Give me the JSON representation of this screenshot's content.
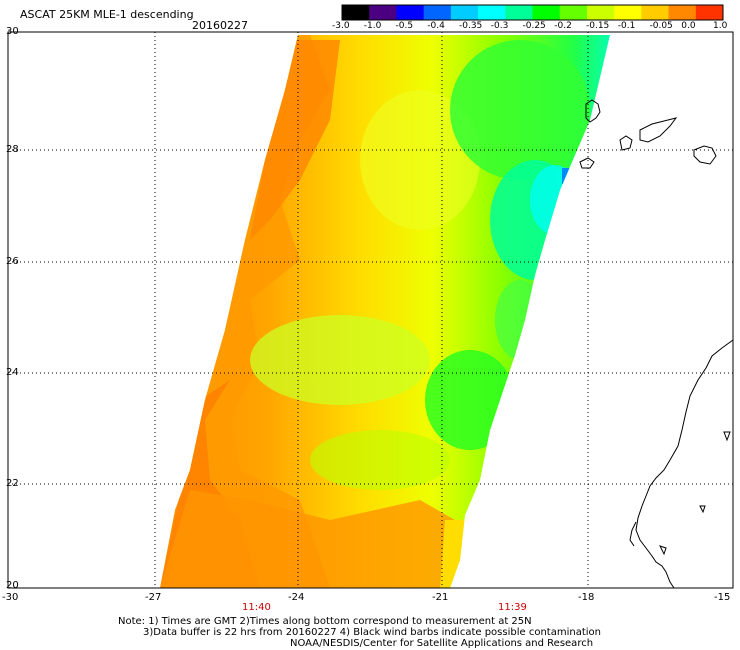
{
  "header": {
    "title": "ASCAT 25KM MLE-1 descending",
    "date": "20160227"
  },
  "colorbar": {
    "labels": [
      "-3.0",
      "-1.0",
      "-0.5",
      "-0.4",
      "-0.35",
      "-0.3",
      "-0.25",
      "-0.2",
      "-0.15",
      "-0.1",
      "-0.05",
      "0.0",
      "1.0"
    ],
    "colors": [
      "#000000",
      "#4b0082",
      "#0000ff",
      "#0066ff",
      "#00ccff",
      "#00ffff",
      "#00ff99",
      "#00ff00",
      "#66ff00",
      "#ccff00",
      "#ffff00",
      "#ffcc00",
      "#ff8800",
      "#ff3300"
    ]
  },
  "map": {
    "lat_labels": [
      "30",
      "28",
      "26",
      "24",
      "22",
      "20"
    ],
    "lon_labels": [
      "-30",
      "-27",
      "-24",
      "-21",
      "-18",
      "-15"
    ],
    "times": [
      "11:40",
      "11:39"
    ],
    "swath_colors": {
      "orange": "#ff8c00",
      "light_orange": "#ffb000",
      "yellow": "#ffee00",
      "yellow_green": "#ccff00",
      "green": "#33ff00",
      "cyan_green": "#00ff99",
      "cyan": "#00ffff",
      "blue": "#0088ff"
    }
  },
  "notes": [
    "Note: 1) Times are GMT 2)Times along bottom correspond to measurement at 25N",
    "3)Data buffer is 22 hrs from 20160227 4) Black wind barbs indicate possible contamination",
    "NOAA/NESDIS/Center for Satellite Applications and Research"
  ]
}
